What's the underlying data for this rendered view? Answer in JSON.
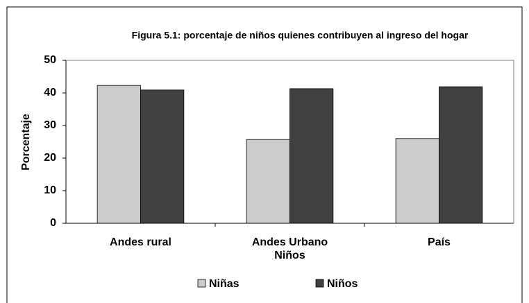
{
  "chart_data": {
    "type": "bar",
    "title": "Figura 5.1: porcentaje de niños quienes contribuyen al ingreso del hogar",
    "y_label": "Porcentaje",
    "categories": [
      "Andes rural",
      "Andes Urbano Niños",
      "País"
    ],
    "series": [
      {
        "name": "Niñas",
        "color": "#cccccc",
        "values": [
          42.3,
          25.7,
          26
        ]
      },
      {
        "name": "Niños",
        "color": "#404040",
        "values": [
          40.9,
          41.3,
          41.9
        ]
      }
    ],
    "ylim": [
      0,
      50
    ],
    "yticks": [
      0,
      10,
      20,
      30,
      40,
      50
    ],
    "grid": false,
    "legend": "bottom"
  }
}
